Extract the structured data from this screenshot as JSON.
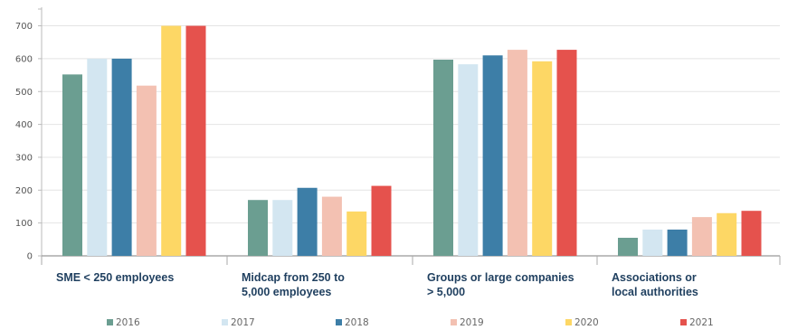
{
  "chart_data": {
    "type": "bar",
    "categories": [
      [
        "SME < 250 employees"
      ],
      [
        "Midcap from 250 to",
        "5,000 employees"
      ],
      [
        "Groups or large companies",
        "> 5,000"
      ],
      [
        "Associations or",
        "local authorities"
      ]
    ],
    "series": [
      {
        "name": "2016",
        "color": "#6b9e91",
        "values": [
          552,
          170,
          597,
          55
        ]
      },
      {
        "name": "2017",
        "color": "#d3e6f1",
        "values": [
          600,
          170,
          583,
          80
        ]
      },
      {
        "name": "2018",
        "color": "#3d7ea7",
        "values": [
          600,
          207,
          610,
          80
        ]
      },
      {
        "name": "2019",
        "color": "#f3c1b2",
        "values": [
          518,
          180,
          627,
          118
        ]
      },
      {
        "name": "2020",
        "color": "#fdd765",
        "values": [
          700,
          135,
          592,
          130
        ]
      },
      {
        "name": "2021",
        "color": "#e5524d",
        "values": [
          700,
          213,
          627,
          137
        ]
      }
    ],
    "yticks": [
      0,
      100,
      200,
      300,
      400,
      500,
      600,
      700
    ],
    "ylim": [
      0,
      760
    ],
    "grid": true,
    "legend": "bottom",
    "title": "",
    "xlabel": "",
    "ylabel": ""
  }
}
